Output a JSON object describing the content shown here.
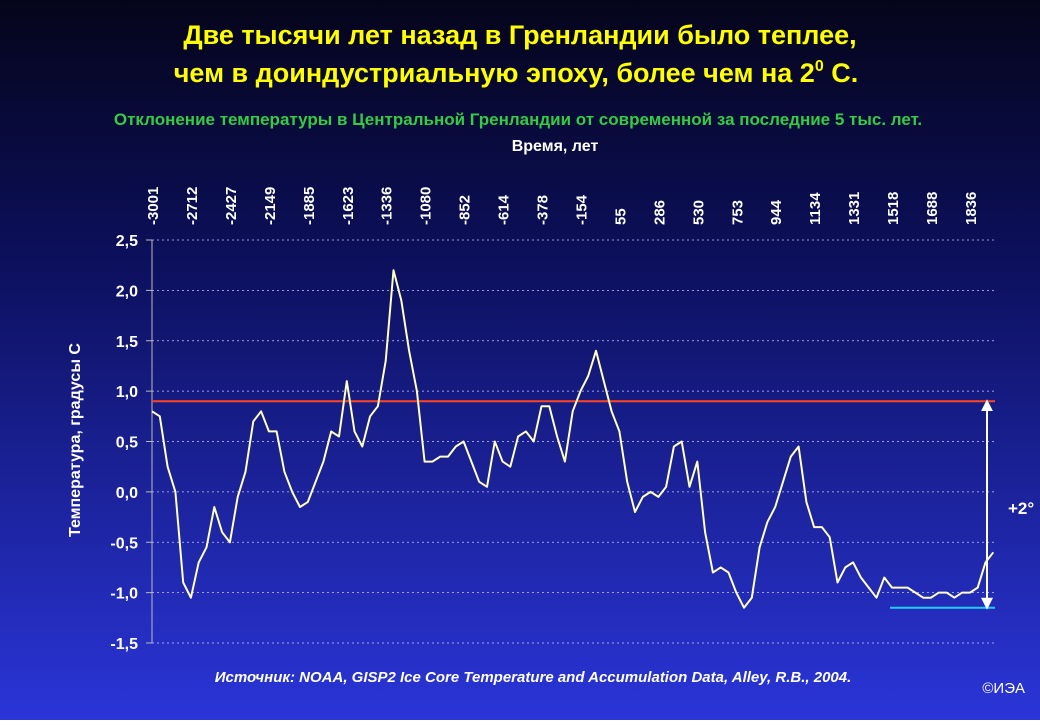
{
  "chart_data": {
    "type": "line",
    "title_lines": [
      "Две тысячи лет назад в Гренландии было теплее,",
      "чем в доиндустриальную эпоху, более чем на 2"
    ],
    "title_superscript": "0",
    "title_tail": " С.",
    "subtitle": "Отклонение температуры в Центральной Гренландии от современной за последние 5 тыс. лет.",
    "x_label": "Время, лет",
    "y_label": "Температура, градусы С",
    "source": "Источник: NOAA, GISP2 Ice Core Temperature and Accumulation Data, Alley, R.B., 2004.",
    "copyright": "©ИЭА",
    "annotation": "+2°",
    "categories": [
      "-3001",
      null,
      null,
      null,
      null,
      "-2712",
      null,
      null,
      null,
      null,
      "-2427",
      null,
      null,
      null,
      null,
      "-2149",
      null,
      null,
      null,
      null,
      "-1885",
      null,
      null,
      null,
      null,
      "-1623",
      null,
      null,
      null,
      null,
      "-1336",
      null,
      null,
      null,
      null,
      "-1080",
      null,
      null,
      null,
      null,
      "-852",
      null,
      null,
      null,
      null,
      "-614",
      null,
      null,
      null,
      null,
      "-378",
      null,
      null,
      null,
      null,
      "-154",
      null,
      null,
      null,
      null,
      "55",
      null,
      null,
      null,
      null,
      "286",
      null,
      null,
      null,
      null,
      "530",
      null,
      null,
      null,
      null,
      "753",
      null,
      null,
      null,
      null,
      "944",
      null,
      null,
      null,
      null,
      "1134",
      null,
      null,
      null,
      null,
      "1331",
      null,
      null,
      null,
      null,
      "1518",
      null,
      null,
      null,
      null,
      "1688",
      null,
      null,
      null,
      null,
      "1836",
      null,
      null,
      null
    ],
    "values": [
      0.8,
      0.75,
      0.25,
      0.0,
      -0.9,
      -1.05,
      -0.7,
      -0.55,
      -0.15,
      -0.4,
      -0.5,
      -0.05,
      0.2,
      0.7,
      0.8,
      0.6,
      0.6,
      0.2,
      0.0,
      -0.15,
      -0.1,
      0.1,
      0.3,
      0.6,
      0.55,
      1.1,
      0.6,
      0.45,
      0.75,
      0.85,
      1.3,
      2.2,
      1.9,
      1.4,
      1.0,
      0.3,
      0.3,
      0.35,
      0.35,
      0.45,
      0.5,
      0.3,
      0.1,
      0.05,
      0.5,
      0.3,
      0.25,
      0.55,
      0.6,
      0.5,
      0.85,
      0.85,
      0.55,
      0.3,
      0.8,
      1.0,
      1.15,
      1.4,
      1.1,
      0.8,
      0.6,
      0.1,
      -0.2,
      -0.05,
      0.0,
      -0.05,
      0.05,
      0.45,
      0.5,
      0.05,
      0.3,
      -0.4,
      -0.8,
      -0.75,
      -0.8,
      -1.0,
      -1.15,
      -1.05,
      -0.55,
      -0.3,
      -0.15,
      0.1,
      0.35,
      0.45,
      -0.1,
      -0.35,
      -0.35,
      -0.45,
      -0.9,
      -0.75,
      -0.7,
      -0.85,
      -0.95,
      -1.05,
      -0.85,
      -0.95,
      -0.95,
      -0.95,
      -1.0,
      -1.05,
      -1.05,
      -1.0,
      -1.0,
      -1.05,
      -1.0,
      -1.0,
      -0.95,
      -0.7,
      -0.6
    ],
    "color": "#ffffc0",
    "ylim": [
      -1.5,
      2.5
    ],
    "yticks": [
      {
        "value": 2.5,
        "label": "2,5"
      },
      {
        "value": 2.0,
        "label": "2,0"
      },
      {
        "value": 1.5,
        "label": "1,5"
      },
      {
        "value": 1.0,
        "label": "1,0"
      },
      {
        "value": 0.5,
        "label": "0,5"
      },
      {
        "value": 0.0,
        "label": "0,0"
      },
      {
        "value": -0.5,
        "label": "-0,5"
      },
      {
        "value": -1.0,
        "label": "-1,0"
      },
      {
        "value": -1.5,
        "label": "-1,5"
      }
    ],
    "grid": true,
    "reference_lines": [
      {
        "value": 0.9,
        "color": "#ff4422"
      },
      {
        "value": -1.15,
        "color": "#22ccf0"
      }
    ]
  }
}
